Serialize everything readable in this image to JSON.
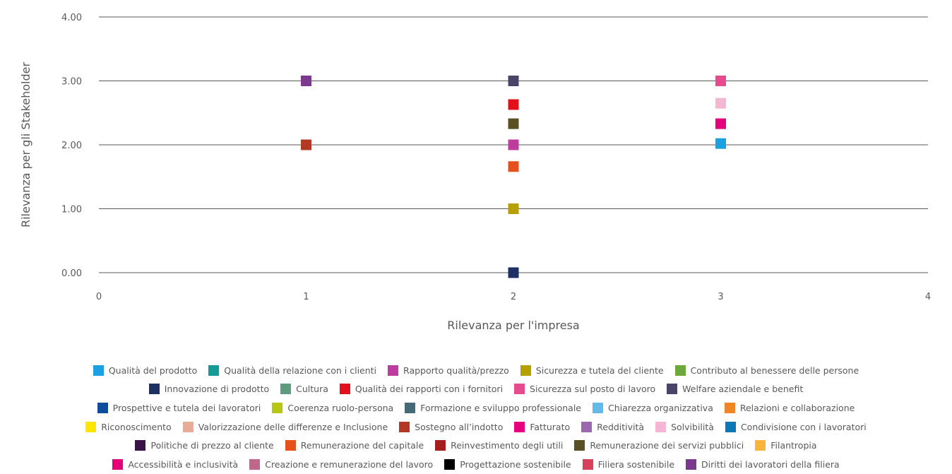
{
  "chart_data": {
    "type": "scatter",
    "title": "",
    "xlabel": "Rilevanza per l'impresa",
    "ylabel": "Rilevanza per gli Stakeholder",
    "xlim": [
      0,
      4
    ],
    "ylim": [
      0,
      4
    ],
    "x_ticks": [
      "0",
      "1",
      "2",
      "3",
      "4"
    ],
    "y_ticks": [
      "0.00",
      "1.00",
      "2.00",
      "3.00",
      "4.00"
    ],
    "grid": "horizontal",
    "legend_position": "bottom",
    "series": [
      {
        "name": "Qualità del prodotto",
        "color": "#1BA1E2",
        "points": [
          [
            3,
            2.02
          ]
        ]
      },
      {
        "name": "Qualità della relazione con i clienti",
        "color": "#139C97",
        "points": []
      },
      {
        "name": "Rapporto qualità/prezzo",
        "color": "#BE3C9E",
        "points": [
          [
            2,
            2.0
          ]
        ]
      },
      {
        "name": "Sicurezza e tutela del cliente",
        "color": "#B5A000",
        "points": [
          [
            2,
            1.0
          ]
        ]
      },
      {
        "name": "Contributo al benessere delle persone",
        "color": "#6BA93A",
        "points": []
      },
      {
        "name": "Innovazione di prodotto",
        "color": "#1E2F64",
        "points": [
          [
            2,
            0.0
          ]
        ]
      },
      {
        "name": "Cultura",
        "color": "#5C9C7F",
        "points": []
      },
      {
        "name": "Qualità dei rapporti con i fornitori",
        "color": "#E2101B",
        "points": [
          [
            2,
            2.63
          ]
        ]
      },
      {
        "name": "Sicurezza sul posto di lavoro",
        "color": "#E84A8E",
        "points": [
          [
            3,
            3.0
          ]
        ]
      },
      {
        "name": "Welfare aziendale e benefit",
        "color": "#4A4468",
        "points": [
          [
            2,
            3.0
          ]
        ]
      },
      {
        "name": "Prospettive e tutela dei lavoratori",
        "color": "#0F4C9C",
        "points": []
      },
      {
        "name": "Coerenza ruolo-persona",
        "color": "#B8C714",
        "points": []
      },
      {
        "name": "Formazione e sviluppo professionale",
        "color": "#456A77",
        "points": []
      },
      {
        "name": "Chiarezza organizzativa",
        "color": "#63BBEA",
        "points": []
      },
      {
        "name": "Relazioni e collaborazione",
        "color": "#F08526",
        "points": []
      },
      {
        "name": "Riconoscimento",
        "color": "#FFE600",
        "points": []
      },
      {
        "name": "Valorizzazione delle differenze e Inclusione",
        "color": "#E8AB94",
        "points": []
      },
      {
        "name": "Sostegno all’indotto",
        "color": "#B23A25",
        "points": [
          [
            1,
            2.0
          ]
        ]
      },
      {
        "name": "Fatturato",
        "color": "#E6007E",
        "points": [
          [
            3,
            2.33
          ]
        ]
      },
      {
        "name": "Redditività",
        "color": "#9C67AC",
        "points": []
      },
      {
        "name": "Solvibilità",
        "color": "#F4B6D3",
        "points": [
          [
            3,
            2.65
          ]
        ]
      },
      {
        "name": "Condivisione con i lavoratori",
        "color": "#0C78B6",
        "points": []
      },
      {
        "name": "Politiche di prezzo al cliente",
        "color": "#3B1245",
        "points": []
      },
      {
        "name": "Remunerazione del capitale",
        "color": "#E5501B",
        "points": [
          [
            2,
            1.66
          ]
        ]
      },
      {
        "name": "Reinvestimento degli utili",
        "color": "#A51D1D",
        "points": []
      },
      {
        "name": "Remunerazione dei servizi pubblici",
        "color": "#5B4F24",
        "points": [
          [
            2,
            2.33
          ]
        ]
      },
      {
        "name": "Filantropia",
        "color": "#F7B53B",
        "points": []
      },
      {
        "name": "Accessibilità e inclusività",
        "color": "#E5007A",
        "points": []
      },
      {
        "name": "Creazione e remunerazione del lavoro",
        "color": "#C0668C",
        "points": []
      },
      {
        "name": "Progettazione sostenibile",
        "color": "#000000",
        "points": []
      },
      {
        "name": "Filiera sostenibile",
        "color": "#D7415B",
        "points": []
      },
      {
        "name": "Diritti dei lavoratori della filiera",
        "color": "#7C3A8E",
        "points": [
          [
            1,
            3.0
          ]
        ]
      }
    ],
    "legend_rows": [
      [
        0,
        1,
        2,
        3,
        4
      ],
      [
        5,
        6,
        7,
        8,
        9
      ],
      [
        10,
        11,
        12,
        13,
        14
      ],
      [
        15,
        16,
        17,
        18,
        19,
        20,
        21
      ],
      [
        22,
        23,
        24,
        25,
        26
      ],
      [
        27,
        28,
        29,
        30,
        31
      ]
    ],
    "colors": {
      "grid": "#595959",
      "text": "#595959"
    }
  }
}
